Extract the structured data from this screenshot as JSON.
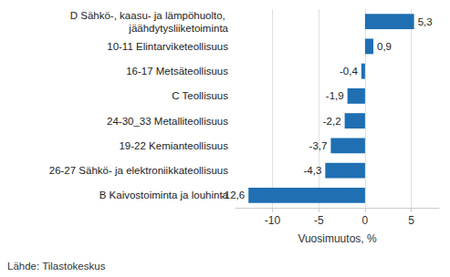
{
  "chart_data": {
    "type": "bar",
    "orientation": "horizontal",
    "categories": [
      "D Sähkö-, kaasu- ja lämpöhuolto, jäähdytysliiketoiminta",
      "10-11 Elintarviketeollisuus",
      "16-17 Metsäteollisuus",
      "C Teollisuus",
      "24-30_33 Metalliteollisuus",
      "19-22 Kemianteollisuus",
      "26-27 Sähkö- ja elektroniikkateollisuus",
      "B Kaivostoiminta ja louhinta"
    ],
    "values": [
      5.3,
      0.9,
      -0.4,
      -1.9,
      -2.2,
      -3.7,
      -4.3,
      -12.6
    ],
    "value_labels": [
      "5,3",
      "0,9",
      "-0,4",
      "-1,9",
      "-2,2",
      "-3,7",
      "-4,3",
      "-12,6"
    ],
    "data_labels": true,
    "color": "#1f6fb2",
    "xlabel": "Vuosimuutos, %",
    "source": "Lähde: Tilastokeskus",
    "xlim": [
      -14,
      8
    ],
    "xticks": [
      -10,
      -5,
      0,
      5
    ],
    "grid": true
  }
}
